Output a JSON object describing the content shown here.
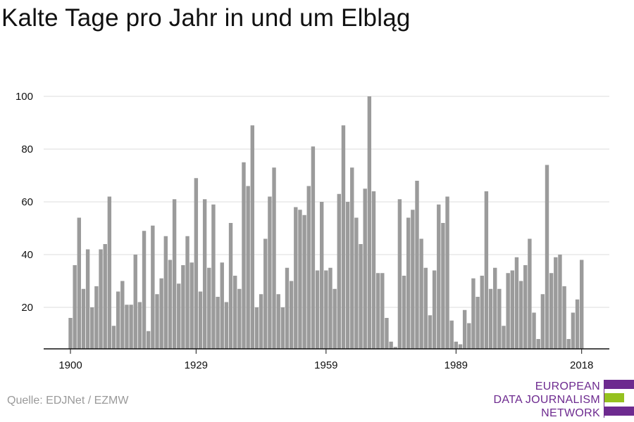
{
  "title": "Kalte Tage pro Jahr in und um Elbląg",
  "source": "Quelle: EDJNet / EZMW",
  "logo": {
    "lines": [
      "EUROPEAN",
      "DATA JOURNALISM",
      "NETWORK"
    ],
    "colors": {
      "purple": "#6d2a8f",
      "green": "#95c11f"
    }
  },
  "colors": {
    "bar": "#9b9b9b",
    "grid": "#dddddd",
    "axis": "#111111"
  },
  "chart_data": {
    "type": "bar",
    "title": "Kalte Tage pro Jahr in und um Elbląg",
    "xlabel": "",
    "ylabel": "",
    "ylim": [
      5,
      100
    ],
    "yticks": [
      20,
      40,
      60,
      80,
      100
    ],
    "xticks": [
      1900,
      1929,
      1959,
      1989,
      2018
    ],
    "grid": true,
    "x_start": 1900,
    "x_end": 2018,
    "values": [
      16,
      36,
      54,
      27,
      42,
      20,
      28,
      42,
      44,
      62,
      13,
      26,
      30,
      21,
      21,
      40,
      22,
      49,
      11,
      51,
      25,
      31,
      47,
      38,
      61,
      29,
      36,
      47,
      37,
      69,
      26,
      61,
      35,
      59,
      24,
      37,
      22,
      52,
      32,
      27,
      75,
      66,
      89,
      20,
      25,
      46,
      62,
      73,
      25,
      20,
      35,
      30,
      58,
      57,
      55,
      66,
      81,
      34,
      60,
      34,
      35,
      27,
      63,
      89,
      60,
      73,
      54,
      44,
      65,
      100,
      64,
      33,
      33,
      16,
      7,
      5,
      61,
      32,
      54,
      57,
      68,
      46,
      35,
      17,
      34,
      59,
      52,
      62,
      15,
      7,
      6,
      19,
      14,
      31,
      24,
      32,
      64,
      27,
      35,
      27,
      13,
      33,
      34,
      39,
      30,
      36,
      46,
      18,
      8,
      25,
      74,
      33,
      39,
      40,
      28,
      8,
      18,
      23,
      38
    ]
  }
}
